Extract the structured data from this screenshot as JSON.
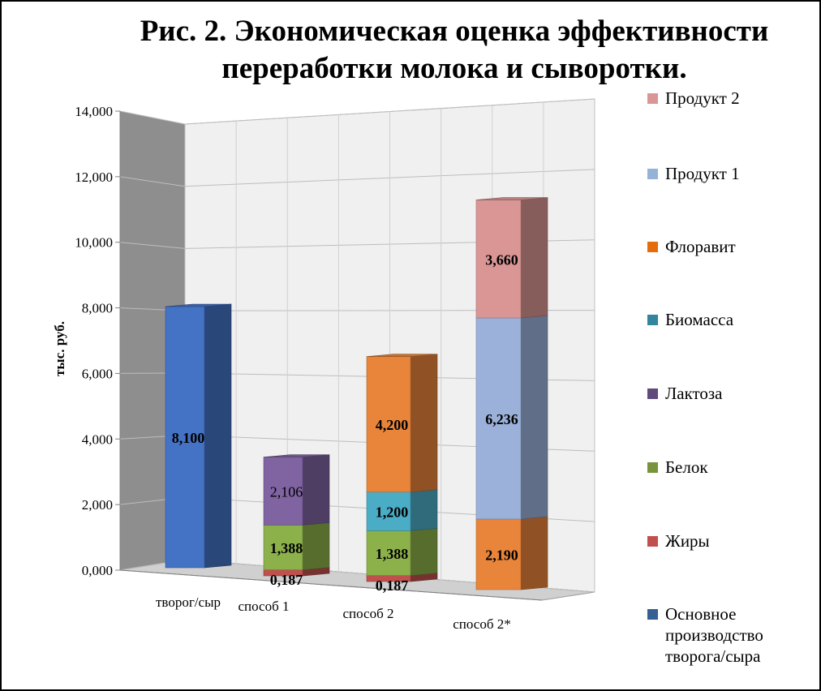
{
  "chart_data": {
    "type": "bar",
    "stacked": true,
    "three_d": true,
    "title_lines": [
      "Рис. 2. Экономическая оценка эффективности",
      "переработки молока и сыворотки."
    ],
    "ylabel": "тыс. руб.",
    "xlabel": "",
    "ylim": [
      0,
      14000
    ],
    "yticks": [
      "0,000",
      "2,000",
      "4,000",
      "6,000",
      "8,000",
      "10,000",
      "12,000",
      "14,000"
    ],
    "ytick_values": [
      0,
      2000,
      4000,
      6000,
      8000,
      10000,
      12000,
      14000
    ],
    "categories": [
      "творог/сыр",
      "способ 1",
      "способ 2",
      "способ 2*"
    ],
    "grid": true,
    "legend_position": "right",
    "legend": [
      {
        "name": "Продукт 2",
        "color": "#D99694"
      },
      {
        "name": "Продукт 1",
        "color": "#95B3D7"
      },
      {
        "name": "Флоравит",
        "color": "#E46C0A"
      },
      {
        "name": "Биомасса",
        "color": "#31859C"
      },
      {
        "name": "Лактоза",
        "color": "#604A7B"
      },
      {
        "name": "Белок",
        "color": "#77933C"
      },
      {
        "name": "Жиры",
        "color": "#C0504D"
      },
      {
        "name": "Основное производство творога/сыра",
        "color": "#376092"
      }
    ],
    "stacks": [
      {
        "category": "творог/сыр",
        "segments": [
          {
            "series": "Основное производство творога/сыра",
            "value": 8100,
            "label": "8,100",
            "color": "#4472C4"
          }
        ]
      },
      {
        "category": "способ 1",
        "segments": [
          {
            "series": "Жиры",
            "value": 187,
            "label": "0,187",
            "color": "#C0504D"
          },
          {
            "series": "Белок",
            "value": 1388,
            "label": "1,388",
            "color": "#8CB04A"
          },
          {
            "series": "Лактоза",
            "value": 2106,
            "label": "2,106",
            "color": "#8064A2"
          }
        ]
      },
      {
        "category": "способ 2",
        "segments": [
          {
            "series": "Жиры",
            "value": 187,
            "label": "0,187",
            "color": "#C0504D"
          },
          {
            "series": "Белок",
            "value": 1388,
            "label": "1,388",
            "color": "#8CB04A"
          },
          {
            "series": "Биомасса",
            "value": 1200,
            "label": "1,200",
            "color": "#4BACC6"
          },
          {
            "series": "Флоравит",
            "value": 4200,
            "label": "4,200",
            "color": "#E8853A"
          }
        ]
      },
      {
        "category": "способ 2*",
        "segments": [
          {
            "series": "Флоравит",
            "value": 2190,
            "label": "2,190",
            "color": "#E8853A"
          },
          {
            "series": "Продукт 1",
            "value": 6236,
            "label": "6,236",
            "color": "#9BB1DA"
          },
          {
            "series": "Продукт 2",
            "value": 3660,
            "label": "3,660",
            "color": "#D99694"
          }
        ]
      }
    ]
  }
}
